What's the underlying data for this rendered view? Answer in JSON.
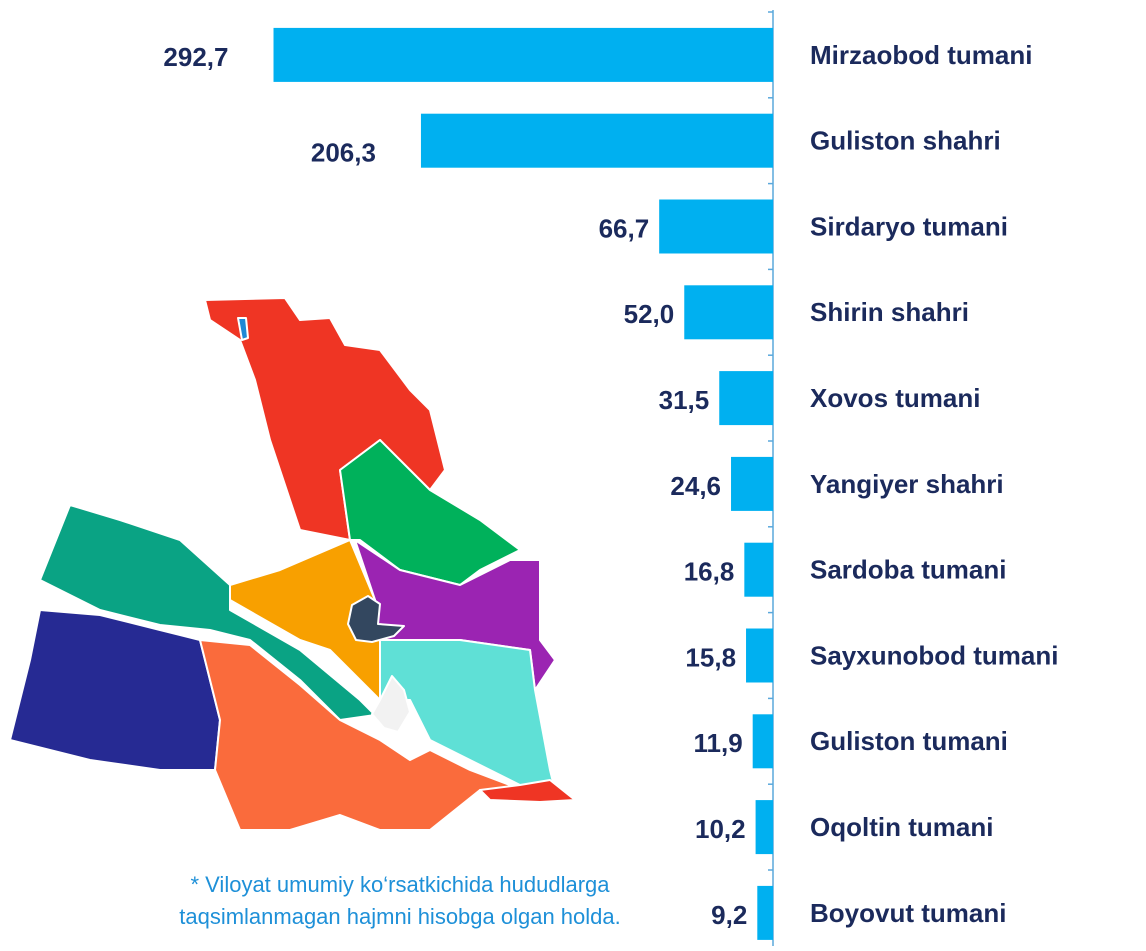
{
  "chart_data": {
    "type": "bar",
    "orientation": "horizontal",
    "categories": [
      "Mirzaobod tumani",
      "Guliston shahri",
      "Sirdaryo tumani",
      "Shirin shahri",
      "Xovos tumani",
      "Yangiyer shahri",
      "Sardoba tumani",
      "Sayxunobod tumani",
      "Guliston tumani",
      "Oqoltin tumani",
      "Boyovut tumani"
    ],
    "values": [
      292.7,
      206.3,
      66.7,
      52.0,
      31.5,
      24.6,
      16.8,
      15.8,
      11.9,
      10.2,
      9.2
    ],
    "value_labels": [
      "292,7",
      "206,3",
      "66,7",
      "52,0",
      "31,5",
      "24,6",
      "16,8",
      "15,8",
      "11,9",
      "10,2",
      "9,2"
    ],
    "color": "#00b0f0",
    "xlim": [
      0,
      293
    ],
    "note": [
      "* Viloyat umumiy ko‘rsatkichida hududlarga",
      "taqsimlanmagan hajmni hisobga olgan holda."
    ]
  }
}
